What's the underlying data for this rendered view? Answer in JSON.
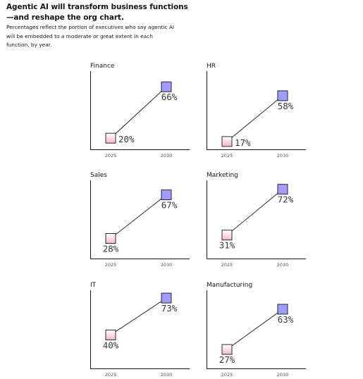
{
  "header": {
    "title": "Agentic AI will transform business functions—and reshape the org chart.",
    "subtitle": "Percentages reflect the portion of executives who say agentic AI will be embedded to a moderate or great extent in each function, by year."
  },
  "colors": {
    "axis": "#161616",
    "line": "#161616",
    "marker_2025_top": "#ffffff",
    "marker_2025_bottom": "#f4b6cf",
    "marker_2030": "#a19cfb",
    "marker_border": "#161616"
  },
  "chart_data": [
    {
      "type": "line",
      "title": "Finance",
      "x": [
        "2025",
        "2030"
      ],
      "values": [
        20,
        66
      ],
      "labels": [
        "20%",
        "66%"
      ],
      "unit": "%",
      "ylim": [
        10,
        80
      ]
    },
    {
      "type": "line",
      "title": "HR",
      "x": [
        "2025",
        "2030"
      ],
      "values": [
        17,
        58
      ],
      "labels": [
        "17%",
        "58%"
      ],
      "unit": "%",
      "ylim": [
        10,
        80
      ]
    },
    {
      "type": "line",
      "title": "Sales",
      "x": [
        "2025",
        "2030"
      ],
      "values": [
        28,
        67
      ],
      "labels": [
        "28%",
        "67%"
      ],
      "unit": "%",
      "ylim": [
        10,
        80
      ]
    },
    {
      "type": "line",
      "title": "Marketing",
      "x": [
        "2025",
        "2030"
      ],
      "values": [
        31,
        72
      ],
      "labels": [
        "31%",
        "72%"
      ],
      "unit": "%",
      "ylim": [
        10,
        80
      ]
    },
    {
      "type": "line",
      "title": "IT",
      "x": [
        "2025",
        "2030"
      ],
      "values": [
        40,
        73
      ],
      "labels": [
        "40%",
        "73%"
      ],
      "unit": "%",
      "ylim": [
        10,
        80
      ]
    },
    {
      "type": "line",
      "title": "Manufacturing",
      "x": [
        "2025",
        "2030"
      ],
      "values": [
        27,
        63
      ],
      "labels": [
        "27%",
        "63%"
      ],
      "unit": "%",
      "ylim": [
        10,
        80
      ]
    }
  ]
}
